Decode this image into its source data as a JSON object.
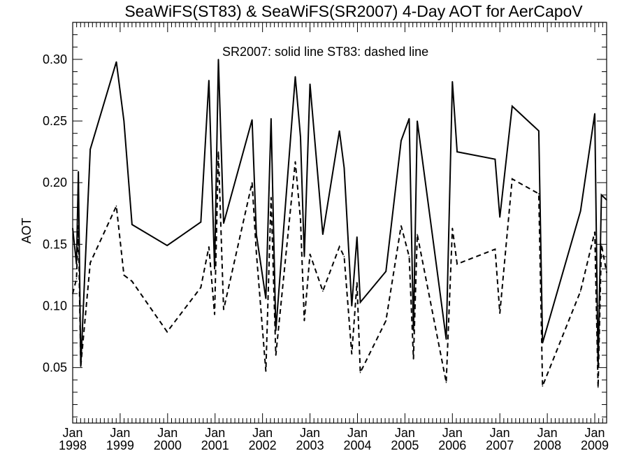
{
  "chart_data": {
    "type": "line",
    "title": "SeaWiFS(ST83) & SeaWiFS(SR2007) 4-Day AOT for AerCapoV",
    "ylabel": "AOT",
    "xlabel": "",
    "annotation": "SR2007: solid line   ST83: dashed line",
    "x_unit": "decimal year",
    "xlim": [
      1998.0,
      2009.25
    ],
    "ylim": [
      0.005,
      0.33
    ],
    "yticks": [
      {
        "value": 0.05,
        "label": "0.05"
      },
      {
        "value": 0.1,
        "label": "0.10"
      },
      {
        "value": 0.15,
        "label": "0.15"
      },
      {
        "value": 0.2,
        "label": "0.20"
      },
      {
        "value": 0.25,
        "label": "0.25"
      },
      {
        "value": 0.3,
        "label": "0.30"
      }
    ],
    "xticks": [
      {
        "value": 1998,
        "month": "Jan",
        "year": "1998"
      },
      {
        "value": 1999,
        "month": "Jan",
        "year": "1999"
      },
      {
        "value": 2000,
        "month": "Jan",
        "year": "2000"
      },
      {
        "value": 2001,
        "month": "Jan",
        "year": "2001"
      },
      {
        "value": 2002,
        "month": "Jan",
        "year": "2002"
      },
      {
        "value": 2003,
        "month": "Jan",
        "year": "2003"
      },
      {
        "value": 2004,
        "month": "Jan",
        "year": "2004"
      },
      {
        "value": 2005,
        "month": "Jan",
        "year": "2005"
      },
      {
        "value": 2006,
        "month": "Jan",
        "year": "2006"
      },
      {
        "value": 2007,
        "month": "Jan",
        "year": "2007"
      },
      {
        "value": 2008,
        "month": "Jan",
        "year": "2008"
      },
      {
        "value": 2009,
        "month": "Jan",
        "year": "2009"
      }
    ],
    "grid": false,
    "series": [
      {
        "name": "SR2007",
        "style": "solid",
        "color": "#000000",
        "points": [
          [
            1998.0,
            0.163
          ],
          [
            1998.08,
            0.134
          ],
          [
            1998.12,
            0.209
          ],
          [
            1998.17,
            0.051
          ],
          [
            1998.37,
            0.227
          ],
          [
            1998.92,
            0.298
          ],
          [
            1999.08,
            0.25
          ],
          [
            1999.25,
            0.166
          ],
          [
            1999.99,
            0.149
          ],
          [
            2000.7,
            0.168
          ],
          [
            2000.87,
            0.283
          ],
          [
            2000.99,
            0.13
          ],
          [
            2001.07,
            0.3
          ],
          [
            2001.18,
            0.167
          ],
          [
            2001.78,
            0.251
          ],
          [
            2001.87,
            0.158
          ],
          [
            2002.07,
            0.106
          ],
          [
            2002.18,
            0.252
          ],
          [
            2002.28,
            0.08
          ],
          [
            2002.69,
            0.286
          ],
          [
            2002.8,
            0.237
          ],
          [
            2002.88,
            0.14
          ],
          [
            2003.0,
            0.28
          ],
          [
            2003.27,
            0.158
          ],
          [
            2003.62,
            0.242
          ],
          [
            2003.72,
            0.212
          ],
          [
            2003.88,
            0.1
          ],
          [
            2003.99,
            0.156
          ],
          [
            2004.06,
            0.103
          ],
          [
            2004.6,
            0.128
          ],
          [
            2004.92,
            0.234
          ],
          [
            2005.09,
            0.252
          ],
          [
            2005.18,
            0.08
          ],
          [
            2005.26,
            0.25
          ],
          [
            2005.87,
            0.073
          ],
          [
            2006.0,
            0.282
          ],
          [
            2006.1,
            0.225
          ],
          [
            2006.9,
            0.219
          ],
          [
            2007.0,
            0.172
          ],
          [
            2007.26,
            0.262
          ],
          [
            2007.82,
            0.242
          ],
          [
            2007.9,
            0.07
          ],
          [
            2008.7,
            0.177
          ],
          [
            2009.0,
            0.256
          ],
          [
            2009.07,
            0.05
          ],
          [
            2009.14,
            0.19
          ],
          [
            2009.25,
            0.186
          ]
        ]
      },
      {
        "name": "ST83",
        "style": "dashed",
        "color": "#000000",
        "points": [
          [
            1998.0,
            0.11
          ],
          [
            1998.08,
            0.122
          ],
          [
            1998.12,
            0.165
          ],
          [
            1998.17,
            0.051
          ],
          [
            1998.37,
            0.135
          ],
          [
            1998.92,
            0.181
          ],
          [
            1999.08,
            0.125
          ],
          [
            1999.25,
            0.12
          ],
          [
            1999.99,
            0.079
          ],
          [
            2000.7,
            0.115
          ],
          [
            2000.87,
            0.148
          ],
          [
            2000.99,
            0.093
          ],
          [
            2001.07,
            0.225
          ],
          [
            2001.18,
            0.097
          ],
          [
            2001.78,
            0.2
          ],
          [
            2001.87,
            0.143
          ],
          [
            2002.07,
            0.047
          ],
          [
            2002.18,
            0.188
          ],
          [
            2002.28,
            0.06
          ],
          [
            2002.69,
            0.217
          ],
          [
            2002.8,
            0.17
          ],
          [
            2002.88,
            0.088
          ],
          [
            2003.0,
            0.142
          ],
          [
            2003.27,
            0.112
          ],
          [
            2003.62,
            0.148
          ],
          [
            2003.72,
            0.14
          ],
          [
            2003.88,
            0.061
          ],
          [
            2003.99,
            0.119
          ],
          [
            2004.06,
            0.046
          ],
          [
            2004.6,
            0.088
          ],
          [
            2004.92,
            0.165
          ],
          [
            2005.09,
            0.14
          ],
          [
            2005.18,
            0.057
          ],
          [
            2005.26,
            0.158
          ],
          [
            2005.87,
            0.038
          ],
          [
            2006.0,
            0.163
          ],
          [
            2006.1,
            0.134
          ],
          [
            2006.9,
            0.146
          ],
          [
            2007.0,
            0.094
          ],
          [
            2007.26,
            0.203
          ],
          [
            2007.82,
            0.191
          ],
          [
            2007.9,
            0.035
          ],
          [
            2008.7,
            0.112
          ],
          [
            2009.0,
            0.16
          ],
          [
            2009.07,
            0.034
          ],
          [
            2009.14,
            0.15
          ],
          [
            2009.25,
            0.127
          ]
        ]
      }
    ]
  }
}
